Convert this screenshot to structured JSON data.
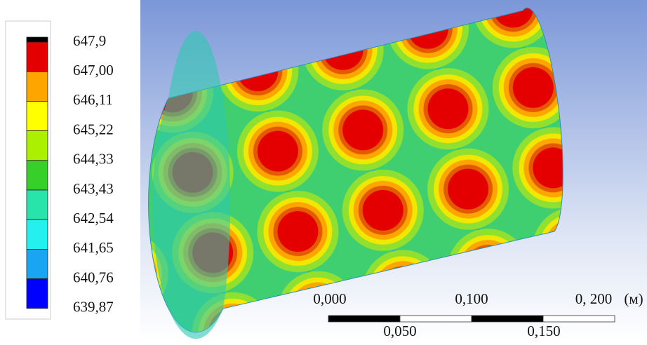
{
  "legend": {
    "labels": [
      "647,9",
      "647,00",
      "646,11",
      "645,22",
      "644,33",
      "643,43",
      "642,54",
      "641,65",
      "640,76",
      "639,87"
    ],
    "colors": [
      "#000000",
      "#e40000",
      "#ffa500",
      "#ffff00",
      "#aaf000",
      "#37cf2a",
      "#29e4aa",
      "#24f0f0",
      "#1aa5f2",
      "#0000ff"
    ]
  },
  "scale_bar": {
    "top_labels": [
      "0,000",
      "0,100",
      "0, 200"
    ],
    "unit": "(м)",
    "bottom_labels": [
      "0,050",
      "0,150"
    ]
  }
}
